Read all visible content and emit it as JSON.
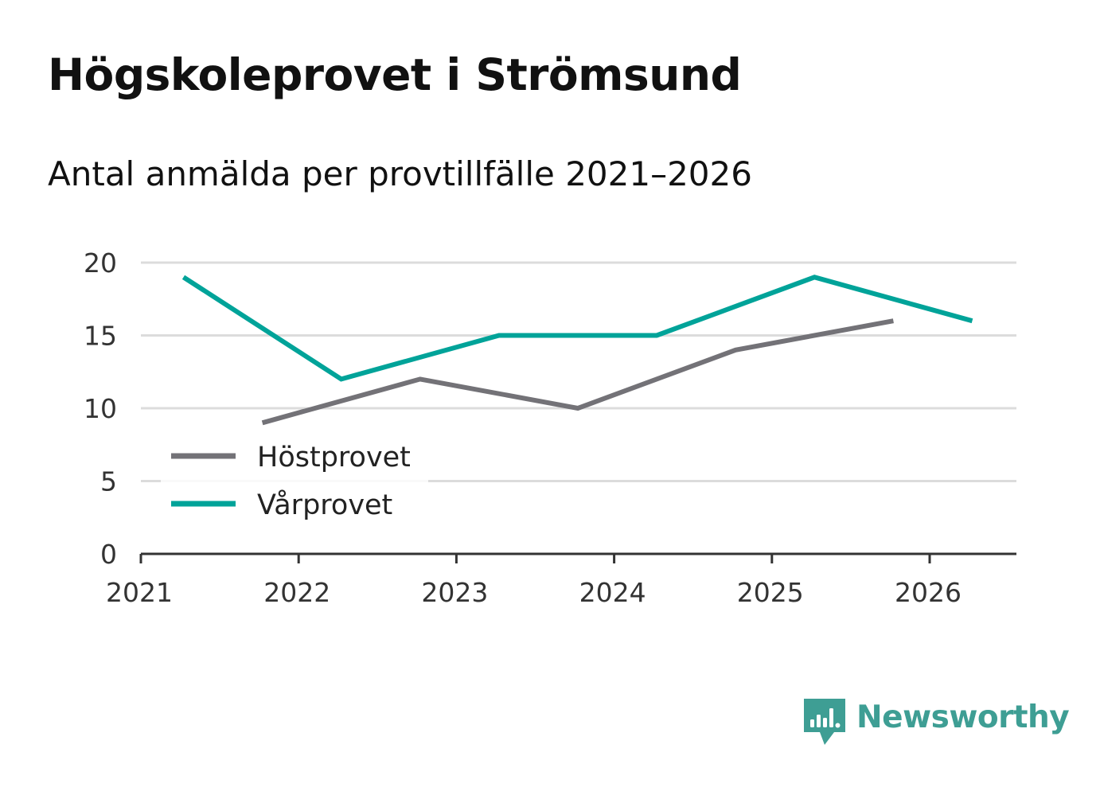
{
  "title": "Högskoleprovet i Strömsund",
  "subtitle": "Antal anmälda per provtillfälle 2021–2026",
  "chart_data": {
    "type": "line",
    "title": "Högskoleprovet i Strömsund",
    "subtitle": "Antal anmälda per provtillfälle 2021–2026",
    "xlabel": "",
    "ylabel": "",
    "xlim": [
      2021,
      2026.55
    ],
    "ylim": [
      0,
      20
    ],
    "x_ticks": [
      "2021",
      "2022",
      "2023",
      "2024",
      "2025",
      "2026"
    ],
    "y_ticks": [
      "0",
      "5",
      "10",
      "15",
      "20"
    ],
    "grid": true,
    "legend_position": "lower-left",
    "series": [
      {
        "name": "Höstprovet",
        "color": "#737277",
        "x": [
          2021.77,
          2022.77,
          2023.77,
          2024.77,
          2025.77
        ],
        "y": [
          9,
          12,
          10,
          14,
          16
        ]
      },
      {
        "name": "Vårprovet",
        "color": "#00a399",
        "x": [
          2021.27,
          2022.27,
          2023.27,
          2024.27,
          2025.27,
          2026.27
        ],
        "y": [
          19,
          12,
          15,
          15,
          19,
          16
        ]
      }
    ]
  },
  "brand": {
    "name": "Newsworthy",
    "icon": "newsworthy-logo-icon",
    "color": "#3e9e94"
  }
}
